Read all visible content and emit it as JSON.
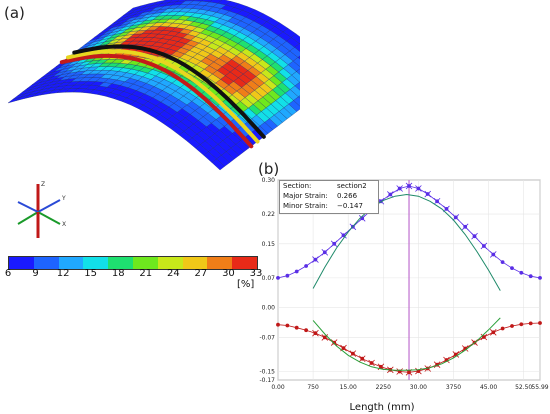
{
  "panels": {
    "a_label": "(a)",
    "b_label": "(b)"
  },
  "triad": {
    "x": "X",
    "y": "Y",
    "z": "Z"
  },
  "colorbar": {
    "ticks": [
      "6",
      "9",
      "12",
      "15",
      "18",
      "21",
      "24",
      "27",
      "30",
      "33"
    ],
    "unit": "[%]",
    "colors": [
      "#1a1aff",
      "#1e64ff",
      "#20a8ff",
      "#12e0e8",
      "#1ee070",
      "#6ee81e",
      "#c8e81a",
      "#f0c818",
      "#f07e18",
      "#e82a18"
    ]
  },
  "mesh_colors": {
    "edge": "#1a2a6b",
    "section_red": "#c41a1a",
    "section_yellow": "#e8d620",
    "section_black": "#111111"
  },
  "legend": {
    "section_key": "Section:",
    "section_val": "section2",
    "major_key": "Major Strain:",
    "major_val": "0.266",
    "minor_key": "Minor Strain:",
    "minor_val": "−0.147"
  },
  "chart_data": {
    "type": "scatter",
    "xlabel": "Length  (mm)",
    "ylabel": "",
    "xlim": [
      0,
      55.99
    ],
    "ylim": [
      -0.17,
      0.3
    ],
    "xticks": [
      "0.00",
      "750",
      "15.00",
      "2250",
      "30.00",
      "3750",
      "45.00",
      "52.50",
      "55.99"
    ],
    "xtick_values": [
      0,
      7.5,
      15,
      22.5,
      30,
      37.5,
      45,
      52.5,
      55.99
    ],
    "yticks": [
      "0.30",
      "0.22",
      "0.15",
      "0.07",
      "0.00",
      "-0.07",
      "-0.15",
      "-0.17"
    ],
    "ytick_values": [
      0.3,
      0.22,
      0.15,
      0.07,
      0.0,
      -0.07,
      -0.15,
      -0.17
    ],
    "cursor_x": 28.0,
    "colors": {
      "major": "#5a2ee6",
      "minor": "#c01818",
      "fit": "#1f8a6a",
      "fit_minor": "#2aa03a",
      "cursor": "#c070d0",
      "grid": "#e6e6e6"
    },
    "series": [
      {
        "name": "",
        "role": "major",
        "x": [
          0,
          2,
          4,
          6,
          8,
          10,
          12,
          14,
          16,
          18,
          20,
          22,
          24,
          26,
          28,
          30,
          32,
          34,
          36,
          38,
          40,
          42,
          44,
          46,
          48,
          50,
          52,
          54,
          56
        ],
        "values": [
          0.07,
          0.075,
          0.085,
          0.098,
          0.113,
          0.13,
          0.15,
          0.17,
          0.19,
          0.21,
          0.23,
          0.25,
          0.266,
          0.28,
          0.286,
          0.28,
          0.267,
          0.25,
          0.232,
          0.212,
          0.19,
          0.168,
          0.145,
          0.125,
          0.107,
          0.093,
          0.082,
          0.074,
          0.07
        ]
      },
      {
        "name": "",
        "role": "minor",
        "x": [
          0,
          2,
          4,
          6,
          8,
          10,
          12,
          14,
          16,
          18,
          20,
          22,
          24,
          26,
          28,
          30,
          32,
          34,
          36,
          38,
          40,
          42,
          44,
          46,
          48,
          50,
          52,
          54,
          56
        ],
        "values": [
          -0.04,
          -0.042,
          -0.047,
          -0.053,
          -0.06,
          -0.07,
          -0.082,
          -0.095,
          -0.108,
          -0.12,
          -0.13,
          -0.139,
          -0.146,
          -0.15,
          -0.152,
          -0.149,
          -0.143,
          -0.134,
          -0.123,
          -0.11,
          -0.096,
          -0.082,
          -0.069,
          -0.058,
          -0.049,
          -0.043,
          -0.039,
          -0.037,
          -0.036
        ]
      },
      {
        "name": "",
        "role": "fit",
        "x": [
          7.5,
          10,
          12.5,
          15,
          17.5,
          20,
          22.5,
          25,
          27.5,
          30,
          32.5,
          35,
          37.5,
          40,
          42.5,
          45,
          47.5
        ],
        "values": [
          0.045,
          0.095,
          0.14,
          0.178,
          0.21,
          0.235,
          0.252,
          0.262,
          0.266,
          0.262,
          0.25,
          0.232,
          0.206,
          0.172,
          0.132,
          0.088,
          0.04
        ]
      },
      {
        "name": "",
        "role": "fit_minor",
        "x": [
          7.5,
          10,
          12.5,
          15,
          17.5,
          20,
          22.5,
          25,
          27.5,
          30,
          32.5,
          35,
          37.5,
          40,
          42.5,
          45,
          47.5
        ],
        "values": [
          -0.03,
          -0.062,
          -0.09,
          -0.112,
          -0.128,
          -0.139,
          -0.145,
          -0.147,
          -0.147,
          -0.146,
          -0.141,
          -0.132,
          -0.118,
          -0.1,
          -0.078,
          -0.052,
          -0.024
        ]
      }
    ]
  }
}
